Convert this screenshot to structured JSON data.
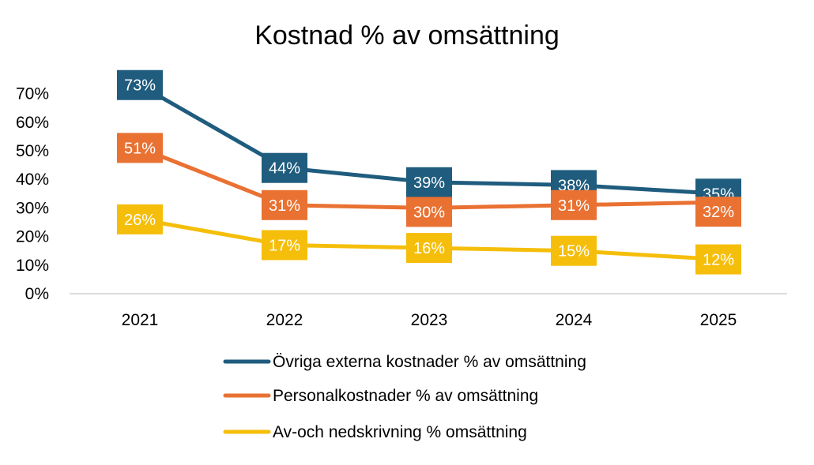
{
  "chart_data": {
    "type": "line",
    "title": "Kostnad % av omsättning",
    "categories": [
      "2021",
      "2022",
      "2023",
      "2024",
      "2025"
    ],
    "ylim": [
      0,
      70
    ],
    "yticks": [
      "0%",
      "10%",
      "20%",
      "30%",
      "40%",
      "50%",
      "60%",
      "70%"
    ],
    "grid": false,
    "legend_position": "bottom",
    "series": [
      {
        "name": "Övriga externa kostnader % av omsättning",
        "color": "#1f5c7e",
        "values": [
          73,
          44,
          39,
          38,
          35
        ],
        "labels": [
          "73%",
          "44%",
          "39%",
          "38%",
          "35%"
        ]
      },
      {
        "name": "Personalkostnader % av omsättning",
        "color": "#e97132",
        "values": [
          51,
          31,
          30,
          31,
          32
        ],
        "labels": [
          "51%",
          "31%",
          "30%",
          "31%",
          "32%"
        ]
      },
      {
        "name": "Av-och nedskrivning % omsättning",
        "color": "#f5be0b",
        "values": [
          26,
          17,
          16,
          15,
          12
        ],
        "labels": [
          "26%",
          "17%",
          "16%",
          "15%",
          "12%"
        ]
      }
    ]
  }
}
